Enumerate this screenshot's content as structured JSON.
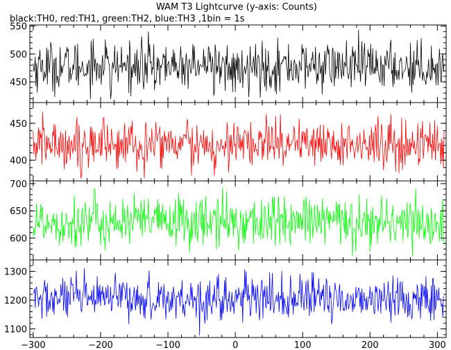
{
  "title": "WAM T3 Lightcurve (y-axis: Counts)",
  "subtitle": "black:TH0, red:TH1, green:TH2, blue:TH3 ,1bin = 1s",
  "chart_data": [
    {
      "type": "line",
      "color": "#000000",
      "xlim": [
        -305,
        313
      ],
      "ylim": [
        413,
        552
      ],
      "yticks": [
        450,
        500,
        550
      ],
      "mean": 478,
      "noise": 22,
      "min": 418,
      "max": 548
    },
    {
      "type": "line",
      "color": "#ff0000",
      "xlim": [
        -305,
        313
      ],
      "ylim": [
        372,
        478
      ],
      "yticks": [
        400,
        450
      ],
      "mean": 422,
      "noise": 17,
      "min": 374,
      "max": 476
    },
    {
      "type": "line",
      "color": "#00ff00",
      "xlim": [
        -305,
        313
      ],
      "ylim": [
        560,
        705
      ],
      "yticks": [
        600,
        650,
        700
      ],
      "mean": 630,
      "noise": 24,
      "min": 562,
      "max": 702
    },
    {
      "type": "line",
      "color": "#0000ff",
      "xlim": [
        -305,
        313
      ],
      "ylim": [
        1070,
        1340
      ],
      "yticks": [
        1100,
        1200,
        1300
      ],
      "mean": 1205,
      "noise": 38,
      "min": 1075,
      "max": 1335
    }
  ],
  "xaxis": {
    "ticks": [
      -300,
      -200,
      -100,
      0,
      100,
      200,
      300
    ],
    "labels": [
      "−300",
      "−200",
      "−100",
      "0",
      "100",
      "200",
      "300"
    ],
    "bin": 1
  }
}
